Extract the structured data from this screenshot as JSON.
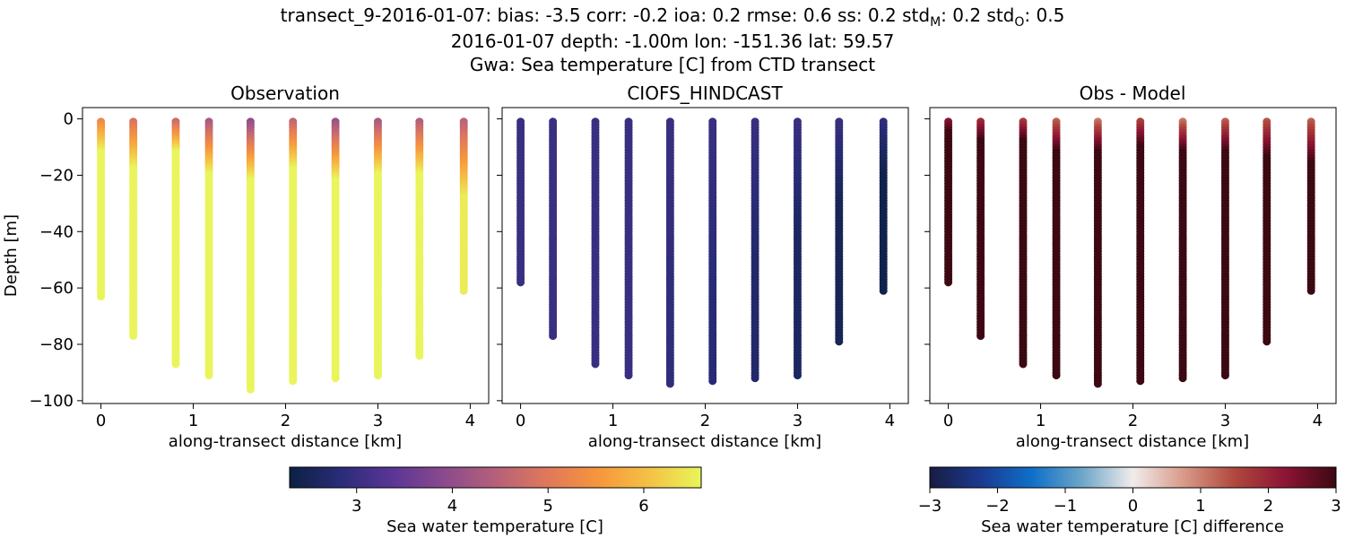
{
  "figure": {
    "title_line1_prefix": "transect_9-2016-01-07: bias: -3.5  corr: -0.2  ioa: 0.2  rmse: 0.6  ss: 0.2  std",
    "title_line1_subM": "M",
    "title_line1_mid": ": 0.2  std",
    "title_line1_subO": "O",
    "title_line1_suffix": ": 0.5",
    "title_line2": "2016-01-07 depth: -1.00m lon: -151.36 lat: 59.57",
    "title_line3": "Gwa: Sea temperature [C] from CTD transect"
  },
  "chart_data": [
    {
      "type": "scatter",
      "title": "Observation",
      "xlabel": "along-transect distance [km]",
      "ylabel": "Depth [m]",
      "xlim": [
        -0.2,
        4.2
      ],
      "ylim": [
        -101,
        4
      ],
      "xticks": [
        0,
        1,
        2,
        3,
        4
      ],
      "yticks": [
        0,
        -20,
        -40,
        -60,
        -80,
        -100
      ],
      "colormap": "plasma-like",
      "color_range": [
        2.3,
        6.6
      ],
      "casts": [
        {
          "x": 0.0,
          "max_depth": -63,
          "surface_value": 5.3,
          "deep_value": 6.6,
          "mix_depth": -12
        },
        {
          "x": 0.35,
          "max_depth": -77,
          "surface_value": 4.9,
          "deep_value": 6.6,
          "mix_depth": -18
        },
        {
          "x": 0.81,
          "max_depth": -87,
          "surface_value": 4.7,
          "deep_value": 6.6,
          "mix_depth": -12
        },
        {
          "x": 1.17,
          "max_depth": -91,
          "surface_value": 4.3,
          "deep_value": 6.6,
          "mix_depth": -20
        },
        {
          "x": 1.62,
          "max_depth": -96,
          "surface_value": 4.0,
          "deep_value": 6.6,
          "mix_depth": -22
        },
        {
          "x": 2.08,
          "max_depth": -93,
          "surface_value": 4.6,
          "deep_value": 6.6,
          "mix_depth": -18
        },
        {
          "x": 2.54,
          "max_depth": -92,
          "surface_value": 4.1,
          "deep_value": 6.6,
          "mix_depth": -22
        },
        {
          "x": 3.0,
          "max_depth": -91,
          "surface_value": 4.3,
          "deep_value": 6.6,
          "mix_depth": -20
        },
        {
          "x": 3.45,
          "max_depth": -84,
          "surface_value": 4.4,
          "deep_value": 6.6,
          "mix_depth": -20
        },
        {
          "x": 3.93,
          "max_depth": -61,
          "surface_value": 4.5,
          "deep_value": 6.5,
          "mix_depth": -28
        }
      ]
    },
    {
      "type": "scatter",
      "title": "CIOFS_HINDCAST",
      "xlabel": "along-transect distance [km]",
      "xlim": [
        -0.2,
        4.2
      ],
      "ylim": [
        -101,
        4
      ],
      "xticks": [
        0,
        1,
        2,
        3,
        4
      ],
      "yticks": [
        0,
        -20,
        -40,
        -60,
        -80,
        -100
      ],
      "colormap": "plasma-like",
      "color_range": [
        2.3,
        6.6
      ],
      "casts": [
        {
          "x": 0.0,
          "max_depth": -58,
          "surface_value": 3.0,
          "deep_value": 3.0,
          "mix_depth": -10
        },
        {
          "x": 0.35,
          "max_depth": -77,
          "surface_value": 3.0,
          "deep_value": 3.0,
          "mix_depth": -10
        },
        {
          "x": 0.81,
          "max_depth": -87,
          "surface_value": 3.0,
          "deep_value": 3.0,
          "mix_depth": -10
        },
        {
          "x": 1.17,
          "max_depth": -91,
          "surface_value": 3.0,
          "deep_value": 3.0,
          "mix_depth": -10
        },
        {
          "x": 1.62,
          "max_depth": -94,
          "surface_value": 3.0,
          "deep_value": 2.9,
          "mix_depth": -60
        },
        {
          "x": 2.08,
          "max_depth": -93,
          "surface_value": 3.0,
          "deep_value": 2.8,
          "mix_depth": -60
        },
        {
          "x": 2.54,
          "max_depth": -92,
          "surface_value": 3.0,
          "deep_value": 2.7,
          "mix_depth": -50
        },
        {
          "x": 3.0,
          "max_depth": -91,
          "surface_value": 3.0,
          "deep_value": 2.6,
          "mix_depth": -40
        },
        {
          "x": 3.45,
          "max_depth": -79,
          "surface_value": 3.0,
          "deep_value": 2.5,
          "mix_depth": -30
        },
        {
          "x": 3.93,
          "max_depth": -61,
          "surface_value": 2.9,
          "deep_value": 2.4,
          "mix_depth": -20
        }
      ]
    },
    {
      "type": "scatter",
      "title": "Obs - Model",
      "xlabel": "along-transect distance [km]",
      "xlim": [
        -0.2,
        4.2
      ],
      "ylim": [
        -101,
        4
      ],
      "xticks": [
        0,
        1,
        2,
        3,
        4
      ],
      "yticks": [
        0,
        -20,
        -40,
        -60,
        -80,
        -100
      ],
      "colormap": "balance-like",
      "color_range": [
        -3,
        3
      ],
      "casts": [
        {
          "x": 0.0,
          "max_depth": -58,
          "surface_value": 2.3,
          "deep_value": 3.0,
          "mix_depth": -5
        },
        {
          "x": 0.35,
          "max_depth": -77,
          "surface_value": 1.9,
          "deep_value": 3.0,
          "mix_depth": -8
        },
        {
          "x": 0.81,
          "max_depth": -87,
          "surface_value": 1.7,
          "deep_value": 3.0,
          "mix_depth": -8
        },
        {
          "x": 1.17,
          "max_depth": -91,
          "surface_value": 1.3,
          "deep_value": 3.0,
          "mix_depth": -12
        },
        {
          "x": 1.62,
          "max_depth": -94,
          "surface_value": 1.1,
          "deep_value": 3.0,
          "mix_depth": -12
        },
        {
          "x": 2.08,
          "max_depth": -93,
          "surface_value": 1.6,
          "deep_value": 3.0,
          "mix_depth": -10
        },
        {
          "x": 2.54,
          "max_depth": -92,
          "surface_value": 1.1,
          "deep_value": 3.0,
          "mix_depth": -12
        },
        {
          "x": 3.0,
          "max_depth": -91,
          "surface_value": 1.3,
          "deep_value": 3.0,
          "mix_depth": -12
        },
        {
          "x": 3.45,
          "max_depth": -79,
          "surface_value": 1.4,
          "deep_value": 3.0,
          "mix_depth": -14
        },
        {
          "x": 3.93,
          "max_depth": -61,
          "surface_value": 1.3,
          "deep_value": 3.0,
          "mix_depth": -16
        }
      ]
    }
  ],
  "colorbars": [
    {
      "label": "Sea water temperature [C]",
      "range": [
        2.3,
        6.6
      ],
      "ticks": [
        "3",
        "4",
        "5",
        "6"
      ],
      "tick_values": [
        3,
        4,
        5,
        6
      ],
      "colormap": "plasma-like"
    },
    {
      "label": "Sea water temperature [C] difference",
      "range": [
        -3,
        3
      ],
      "ticks": [
        "−3",
        "−2",
        "−1",
        "0",
        "1",
        "2",
        "3"
      ],
      "tick_values": [
        -3,
        -2,
        -1,
        0,
        1,
        2,
        3
      ],
      "colormap": "balance-like"
    }
  ],
  "colors": {
    "plasma": [
      "#0b2143",
      "#2a2c78",
      "#5b3596",
      "#8a4a8d",
      "#b5607a",
      "#e0785a",
      "#f6963c",
      "#f4c245",
      "#e9f55a"
    ],
    "balance": [
      "#181c43",
      "#1b3a8f",
      "#0f6ec9",
      "#6da6c8",
      "#f1ecec",
      "#d89a88",
      "#b0483d",
      "#8c1434",
      "#3c0912"
    ]
  }
}
